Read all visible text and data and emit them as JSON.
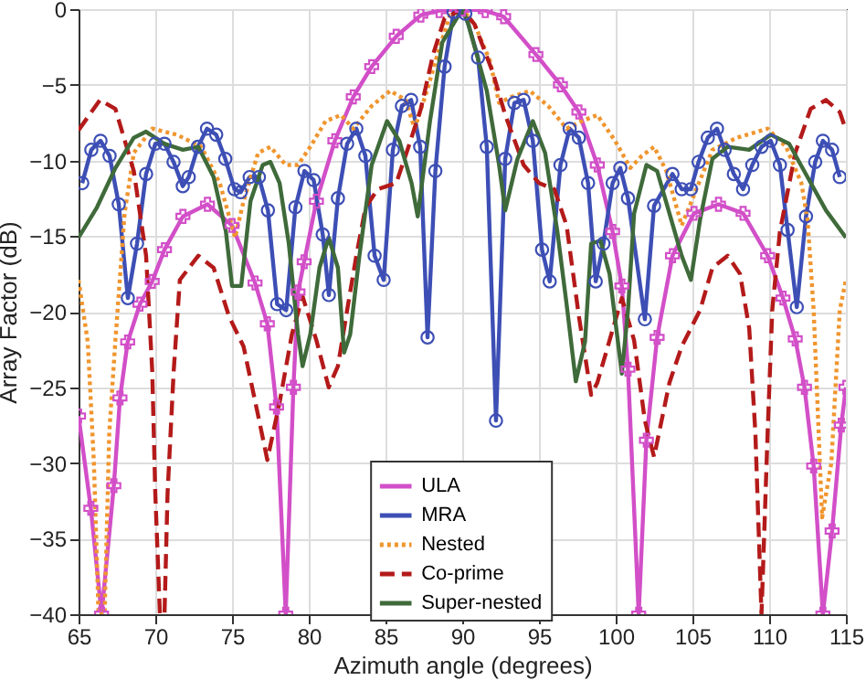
{
  "chart_data": {
    "type": "line",
    "xlabel": "Azimuth angle (degrees)",
    "ylabel": "Array Factor (dB)",
    "xlim": [
      65,
      115
    ],
    "xticks": [
      65,
      70,
      75,
      80,
      85,
      90,
      95,
      100,
      105,
      110,
      115
    ],
    "ylim": [
      -40,
      0
    ],
    "yticks": [
      -40,
      -35,
      -30,
      -25,
      -20,
      -15,
      -10,
      -5,
      0
    ],
    "grid": true,
    "legend": "bottom",
    "series": [
      {
        "name": "ULA",
        "color": "#d24fc8",
        "marker": "cross",
        "line_style": "solid",
        "x": [
          65,
          65.8,
          66.5,
          67.3,
          67.7,
          68.2,
          69,
          69.8,
          70.6,
          71.8,
          73.4,
          75,
          76.5,
          77.3,
          77.9,
          78.5,
          79,
          79.3,
          79.7,
          80.5,
          81.7,
          82.9,
          84.1,
          85.7,
          87.3,
          88.5,
          90,
          91.5,
          92.7,
          94.8,
          96.4,
          97.6,
          98.8,
          99.8,
          100.4,
          100.8,
          101.5,
          102,
          102.7,
          103.7,
          105.1,
          106.7,
          108.3,
          109.9,
          110.9,
          111.7,
          112.3,
          112.9,
          113.5,
          114.1,
          114.7,
          115
        ],
        "values": [
          -26.9,
          -33,
          -40,
          -31.5,
          -25.7,
          -22,
          -19.5,
          -18,
          -15.9,
          -13.7,
          -12.9,
          -14.3,
          -18.1,
          -20.8,
          -26.3,
          -40,
          -25,
          -18.7,
          -16.7,
          -12.7,
          -8.7,
          -5.8,
          -3.8,
          -1.8,
          -0.4,
          -0.1,
          0,
          -0.1,
          -0.5,
          -3,
          -5,
          -6.8,
          -10.3,
          -14.7,
          -18.3,
          -23.8,
          -40,
          -28.5,
          -21.7,
          -16.3,
          -13.5,
          -12.9,
          -13.5,
          -16.3,
          -19.1,
          -21.8,
          -25,
          -30.2,
          -40,
          -34.5,
          -27.5,
          -25
        ]
      },
      {
        "name": "MRA",
        "color": "#3d4fb5",
        "marker": "circle",
        "line_style": "solid",
        "x": [
          65.24,
          65.83,
          66.43,
          67.02,
          67.62,
          68.21,
          68.81,
          69.4,
          70,
          70.6,
          71.19,
          71.79,
          72.18,
          72.78,
          73.37,
          73.97,
          74.56,
          75.16,
          75.56,
          76.15,
          76.75,
          77.34,
          77.94,
          78.53,
          79.13,
          79.72,
          80.32,
          80.91,
          81.31,
          81.9,
          82.5,
          83.1,
          83.69,
          84.29,
          84.88,
          85.48,
          86.07,
          86.67,
          87.26,
          87.74,
          88.25,
          88.85,
          89.44,
          90.2,
          91.03,
          91.6,
          92.2,
          92.8,
          93.4,
          94,
          94.6,
          95.2,
          95.7,
          96.4,
          97,
          97.6,
          98.2,
          98.7,
          99.2,
          99.8,
          100.3,
          100.8,
          101.9,
          102.5,
          103.7,
          104.3,
          104.9,
          105.4,
          106,
          106.6,
          107.1,
          107.7,
          108.3,
          108.9,
          109.5,
          110.1,
          110.7,
          111.2,
          111.8,
          112.4,
          113,
          113.5,
          114.1,
          114.6
        ],
        "values": [
          -11.5,
          -9.3,
          -8.7,
          -9.7,
          -12.9,
          -19.1,
          -15.5,
          -10.9,
          -8.9,
          -8.9,
          -10.1,
          -11.7,
          -11.1,
          -9.1,
          -7.9,
          -8.3,
          -9.9,
          -11.9,
          -12.1,
          -11.1,
          -11.1,
          -13.3,
          -19.5,
          -19.9,
          -13.1,
          -10.7,
          -11.3,
          -14.9,
          -18.9,
          -12.5,
          -8.9,
          -7.9,
          -9.7,
          -16.3,
          -17.9,
          -9.3,
          -6.4,
          -6,
          -9.1,
          -21.7,
          -10.7,
          -3.8,
          -0.2,
          -0.3,
          -3.2,
          -9.1,
          -27.2,
          -9.9,
          -6.2,
          -6,
          -8.7,
          -15.9,
          -18,
          -10.3,
          -7.9,
          -8.5,
          -11.5,
          -18,
          -15.5,
          -11.5,
          -10.5,
          -12.5,
          -20.5,
          -13,
          -10.9,
          -11.9,
          -11.9,
          -10.1,
          -8.5,
          -7.9,
          -9.3,
          -10.9,
          -11.9,
          -10.3,
          -9.1,
          -8.7,
          -10.3,
          -14.6,
          -19.7,
          -13.7,
          -10.1,
          -8.7,
          -9.3,
          -11.1
        ]
      },
      {
        "name": "Nested",
        "color": "#f0952e",
        "marker": "none",
        "line_style": "dotted",
        "x": [
          65,
          65.6,
          66,
          66.3,
          66.7,
          67,
          67.4,
          68,
          68.6,
          69.8,
          71.4,
          73,
          74.2,
          75.2,
          75.75,
          76.7,
          77.5,
          78.5,
          79.3,
          80.1,
          81.1,
          82.1,
          82.9,
          84.1,
          85.3,
          86.3,
          86.9,
          87.7,
          88.5,
          89.2,
          90,
          90.8,
          91.8,
          92.4,
          93.2,
          94.4,
          95.6,
          96.8,
          97.8,
          98.8,
          99.96,
          100.95,
          101.7,
          102.5,
          103.3,
          104.3,
          105.1,
          106.3,
          107.9,
          109.9,
          111.1,
          112.1,
          112.5,
          112.9,
          113.45,
          114.05,
          114.6,
          115
        ],
        "values": [
          -17.9,
          -22,
          -30,
          -40,
          -40,
          -28,
          -21.9,
          -13.5,
          -9.5,
          -7.9,
          -8.3,
          -9.1,
          -11.5,
          -15.1,
          -12.7,
          -9.5,
          -9.1,
          -10.3,
          -10.3,
          -9.1,
          -7.4,
          -7,
          -7.9,
          -6.4,
          -5.4,
          -6,
          -7.9,
          -5.4,
          -2.6,
          -0.4,
          0,
          -1,
          -3.4,
          -6.2,
          -5.8,
          -5.4,
          -6.4,
          -7.9,
          -7.4,
          -7,
          -8.7,
          -10.5,
          -9.7,
          -9.1,
          -10.7,
          -14.3,
          -12.3,
          -9.3,
          -8.5,
          -7.9,
          -9.1,
          -11.5,
          -13.9,
          -19.9,
          -33.6,
          -30,
          -19.9,
          -17.9
        ]
      },
      {
        "name": "Co-prime",
        "color": "#b41a1a",
        "marker": "none",
        "line_style": "dashed",
        "x": [
          65,
          66.4,
          67.4,
          68.6,
          69.4,
          69.8,
          70,
          70.3,
          70.6,
          70.8,
          71.2,
          71.6,
          72.8,
          73.8,
          74.8,
          75.75,
          76.75,
          77.3,
          78.1,
          78.9,
          79.6,
          80.5,
          81.3,
          81.9,
          82.5,
          83.1,
          83.7,
          84.5,
          85.7,
          86.5,
          87.3,
          88.1,
          88.85,
          90,
          90.8,
          92,
          92.8,
          94,
          95,
          96,
          96.8,
          97.6,
          98.4,
          98.8,
          99.6,
          100.4,
          101.2,
          101.9,
          102.5,
          103.5,
          104.3,
          105.5,
          106.3,
          107.3,
          108.1,
          108.7,
          109.1,
          109.5,
          109.9,
          110.2,
          110.7,
          111.7,
          112.7,
          113.7,
          114.6,
          115
        ],
        "values": [
          -8,
          -6,
          -6.6,
          -10.7,
          -16.3,
          -23.9,
          -32,
          -40,
          -40,
          -32,
          -23.9,
          -17.9,
          -16.3,
          -17.1,
          -20.3,
          -22.3,
          -27.1,
          -29.8,
          -26,
          -21.5,
          -19,
          -21.9,
          -25,
          -23.6,
          -19.9,
          -16.3,
          -13.1,
          -11.9,
          -11.5,
          -9.1,
          -6.6,
          -3,
          -0.6,
          0,
          -1,
          -4.2,
          -7,
          -10.3,
          -11.5,
          -11.9,
          -14.3,
          -20.3,
          -25.5,
          -24.7,
          -21.9,
          -19.1,
          -21.9,
          -27.2,
          -29.6,
          -24.7,
          -22.3,
          -19.9,
          -17.1,
          -16.3,
          -17.5,
          -21.1,
          -28,
          -40,
          -28,
          -19.9,
          -14.7,
          -9.5,
          -6.6,
          -6,
          -6.8,
          -8
        ]
      },
      {
        "name": "Super-nested",
        "color": "#3f6a3a",
        "marker": "none",
        "line_style": "solid",
        "x": [
          65,
          66.2,
          67.4,
          68.6,
          69.4,
          70.6,
          71.8,
          72.8,
          73.8,
          74.6,
          75,
          75.6,
          76.2,
          77,
          77.5,
          78.1,
          78.7,
          79.3,
          79.6,
          80.1,
          80.7,
          81.3,
          81.9,
          82.3,
          82.7,
          83.3,
          84.1,
          85.1,
          85.9,
          86.7,
          87.1,
          87.9,
          88.7,
          90,
          90.4,
          91.6,
          92.4,
          92.8,
          93.6,
          94.6,
          95.4,
          96.2,
          96.8,
          97.4,
          98,
          98.4,
          99,
          99.6,
          100.4,
          100.8,
          101.2,
          102,
          102.7,
          103.5,
          104.3,
          104.9,
          105.5,
          106.3,
          107.3,
          108.7,
          110.1,
          111.3,
          112.5,
          113.7,
          115
        ],
        "values": [
          -15.1,
          -13.1,
          -10.5,
          -8.5,
          -8.1,
          -8.9,
          -9.3,
          -9.1,
          -11.1,
          -14.7,
          -18.3,
          -18.3,
          -12.7,
          -10.3,
          -10.1,
          -11.5,
          -15.5,
          -21.5,
          -23.6,
          -21.5,
          -17.1,
          -15.1,
          -17.1,
          -22.7,
          -21.5,
          -16.3,
          -10.3,
          -7.4,
          -8.7,
          -11.5,
          -13.7,
          -7.4,
          -2.2,
          0,
          -1,
          -5.4,
          -10.3,
          -13.3,
          -9.9,
          -7.4,
          -9.5,
          -14.7,
          -19.5,
          -24.6,
          -22,
          -15.5,
          -15.3,
          -17.5,
          -24.1,
          -19.9,
          -13.5,
          -10.3,
          -10.7,
          -13.5,
          -16.3,
          -17.9,
          -13.9,
          -9.9,
          -9.1,
          -9.3,
          -8.3,
          -8.9,
          -11.1,
          -13.3,
          -15.1
        ]
      }
    ]
  }
}
